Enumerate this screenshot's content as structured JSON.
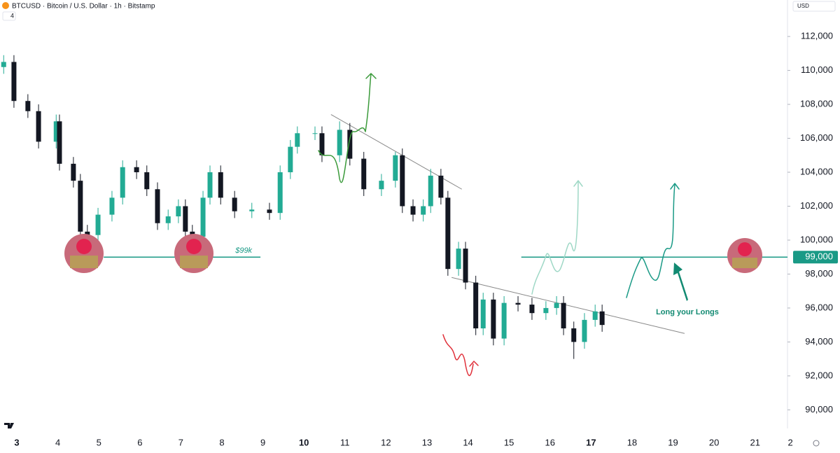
{
  "chart_data": {
    "type": "candlestick",
    "title": "BTCUSD · Bitcoin / U.S. Dollar · 1h · Bitstamp",
    "currency": "USD",
    "indicator_count": "4",
    "xlim": [
      -0.41,
      18.79
    ],
    "ylim": [
      88900,
      114150
    ],
    "xticks": [
      {
        "value": 0,
        "label": "3"
      },
      {
        "value": 1,
        "label": "4"
      },
      {
        "value": 2,
        "label": "5"
      },
      {
        "value": 3,
        "label": "6"
      },
      {
        "value": 4,
        "label": "7"
      },
      {
        "value": 5,
        "label": "8"
      },
      {
        "value": 6,
        "label": "9"
      },
      {
        "value": 7,
        "label": "10"
      },
      {
        "value": 8,
        "label": "11"
      },
      {
        "value": 9,
        "label": "12"
      },
      {
        "value": 10,
        "label": "13"
      },
      {
        "value": 11,
        "label": "14"
      },
      {
        "value": 12,
        "label": "15"
      },
      {
        "value": 13,
        "label": "16"
      },
      {
        "value": 14,
        "label": "17"
      },
      {
        "value": 15,
        "label": "18"
      },
      {
        "value": 16,
        "label": "19"
      },
      {
        "value": 17,
        "label": "20"
      },
      {
        "value": 18,
        "label": "21"
      },
      {
        "value": 18.86,
        "label": "2"
      }
    ],
    "yticks": [
      {
        "value": 90000,
        "label": "90,000"
      },
      {
        "value": 92000,
        "label": "92,000"
      },
      {
        "value": 94000,
        "label": "94,000"
      },
      {
        "value": 96000,
        "label": "96,000"
      },
      {
        "value": 98000,
        "label": "98,000"
      },
      {
        "value": 100000,
        "label": "100,000"
      },
      {
        "value": 102000,
        "label": "102,000"
      },
      {
        "value": 104000,
        "label": "104,000"
      },
      {
        "value": 106000,
        "label": "106,000"
      },
      {
        "value": 108000,
        "label": "108,000"
      },
      {
        "value": 110000,
        "label": "110,000"
      },
      {
        "value": 112000,
        "label": "112,000"
      }
    ],
    "up_color": "#22ab94",
    "down_color": "#131722",
    "series": {
      "x": [
        -0.32,
        -0.07,
        0.27,
        0.53,
        0.96,
        1.04,
        1.38,
        1.55,
        1.72,
        1.98,
        2.32,
        2.58,
        2.92,
        3.17,
        3.43,
        3.69,
        3.94,
        4.11,
        4.28,
        4.54,
        4.71,
        4.97,
        5.31,
        5.73,
        6.16,
        6.42,
        6.67,
        6.84,
        7.27,
        7.44,
        7.87,
        8.12,
        8.46,
        8.89,
        9.23,
        9.4,
        9.66,
        9.91,
        10.09,
        10.34,
        10.51,
        10.77,
        10.94,
        11.19,
        11.37,
        11.62,
        11.88,
        12.22,
        12.56,
        12.9,
        13.16,
        13.33,
        13.58,
        13.84,
        14.1,
        14.27
      ],
      "open": [
        110200,
        110500,
        108200,
        107600,
        105800,
        107000,
        104500,
        103500,
        100500,
        100300,
        101500,
        102500,
        104300,
        104000,
        103000,
        101000,
        101400,
        102000,
        100500,
        100200,
        102500,
        104000,
        102500,
        101700,
        101800,
        101600,
        104000,
        105500,
        106300,
        106300,
        105000,
        106500,
        104800,
        103000,
        103500,
        105000,
        102000,
        101500,
        102000,
        103800,
        102500,
        98300,
        99500,
        97500,
        94800,
        96500,
        94200,
        96300,
        96200,
        95700,
        96000,
        96300,
        94800,
        94000,
        95300,
        95800
      ],
      "high": [
        110900,
        110900,
        108600,
        108000,
        107400,
        107400,
        104900,
        103900,
        100900,
        101900,
        102900,
        104700,
        104700,
        104400,
        103400,
        101800,
        102400,
        102400,
        100900,
        102900,
        104400,
        104400,
        102900,
        102200,
        102200,
        104400,
        105900,
        106700,
        106700,
        106700,
        107000,
        106900,
        105200,
        103900,
        105200,
        105400,
        102400,
        102400,
        104200,
        104200,
        102900,
        99900,
        99900,
        97900,
        96900,
        96900,
        96700,
        96700,
        96600,
        96400,
        96700,
        96700,
        95200,
        95700,
        96200,
        96200
      ],
      "low": [
        109800,
        107800,
        107200,
        105400,
        105400,
        104100,
        103100,
        100100,
        99900,
        99900,
        101100,
        102100,
        103600,
        102600,
        100600,
        100600,
        101000,
        100100,
        99800,
        99800,
        102100,
        102100,
        101300,
        101300,
        101200,
        101200,
        103600,
        105100,
        105900,
        104600,
        104600,
        104400,
        102600,
        102600,
        103100,
        101600,
        101100,
        101100,
        101600,
        102100,
        97900,
        97900,
        97100,
        94400,
        94400,
        93800,
        93800,
        95800,
        95300,
        95300,
        95600,
        94400,
        93000,
        93600,
        94900,
        94600
      ],
      "close": [
        110500,
        108200,
        107600,
        105800,
        107000,
        104500,
        103500,
        100500,
        100300,
        101500,
        102500,
        104300,
        104000,
        103000,
        101000,
        101400,
        102000,
        100500,
        100200,
        102500,
        104000,
        102500,
        101700,
        101800,
        101600,
        104000,
        105500,
        106300,
        106300,
        105000,
        106500,
        104800,
        103000,
        103500,
        105000,
        102000,
        101500,
        102000,
        103800,
        102500,
        98300,
        99500,
        97500,
        94800,
        96500,
        94200,
        96300,
        96200,
        95700,
        96000,
        96300,
        94800,
        94000,
        95300,
        95800,
        95000
      ]
    },
    "trendlines": [
      {
        "x": [
          7.66,
          10.85
        ],
        "y": [
          107400,
          103000
        ]
      },
      {
        "x": [
          10.6,
          16.28
        ],
        "y": [
          97800,
          94500
        ]
      }
    ],
    "level": {
      "value": 99000,
      "label": "99,000",
      "color": "#1a9a86",
      "segments": [
        [
          2.12,
          5.94
        ],
        [
          12.3,
          18.79
        ]
      ],
      "annotation": "$99k"
    },
    "note": "Long your Longs"
  }
}
